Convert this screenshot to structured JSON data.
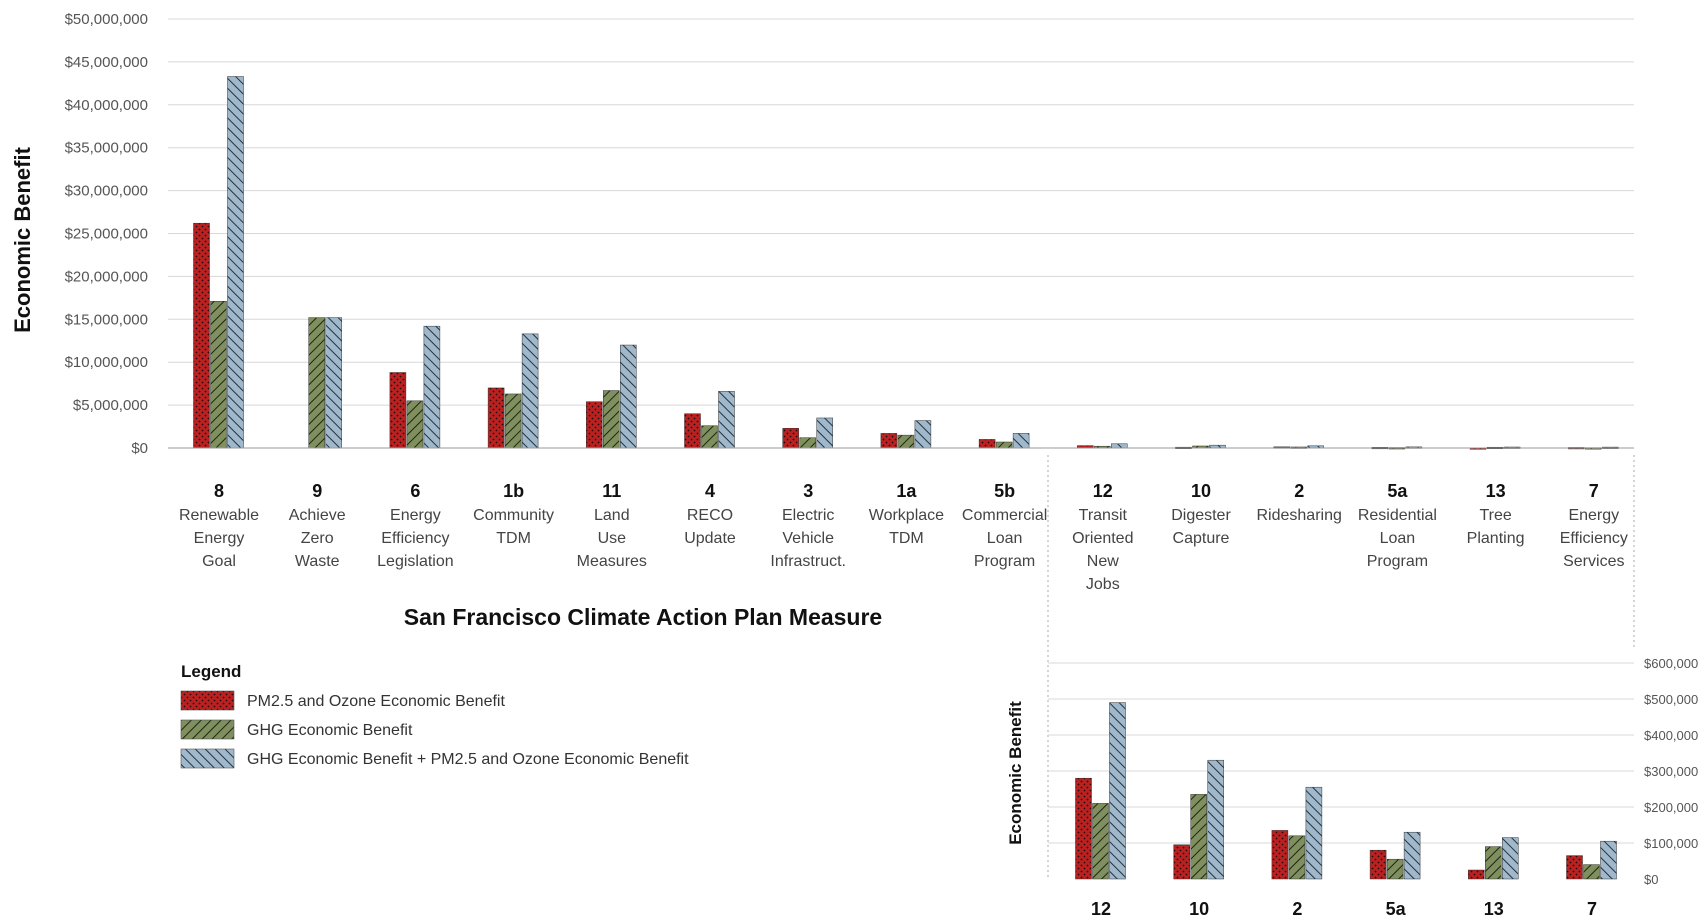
{
  "colors": {
    "pm": "#b82222",
    "ghg": "#7a8a5a",
    "total": "#9ab4c8",
    "grid": "#d8d8d8"
  },
  "legend": {
    "title": "Legend",
    "items": [
      "PM2.5 and Ozone Economic Benefit",
      "GHG Economic Benefit",
      "GHG Economic Benefit + PM2.5 and Ozone Economic Benefit"
    ]
  },
  "chart_data": [
    {
      "type": "bar",
      "ylabel": "Economic Benefit",
      "xlabel": "San Francisco Climate Action Plan Measure",
      "ylim": [
        0,
        50000000
      ],
      "yticks": [
        "$0",
        "$5,000,000",
        "$10,000,000",
        "$15,000,000",
        "$20,000,000",
        "$25,000,000",
        "$30,000,000",
        "$35,000,000",
        "$40,000,000",
        "$45,000,000",
        "$50,000,000"
      ],
      "grid": true,
      "categories": [
        "8",
        "9",
        "6",
        "1b",
        "11",
        "4",
        "3",
        "1a",
        "5b",
        "12",
        "10",
        "2",
        "5a",
        "13",
        "7"
      ],
      "category_names": [
        [
          "Renewable",
          "Energy",
          "Goal"
        ],
        [
          "Achieve",
          "Zero",
          "Waste"
        ],
        [
          "Energy",
          "Efficiency",
          "Legislation"
        ],
        [
          "Community",
          "TDM"
        ],
        [
          "Land",
          "Use",
          "Measures"
        ],
        [
          "RECO",
          "Update"
        ],
        [
          "Electric",
          "Vehicle",
          "Infrastruct."
        ],
        [
          "Workplace",
          "TDM"
        ],
        [
          "Commercial",
          "Loan",
          "Program"
        ],
        [
          "Transit",
          "Oriented",
          "New",
          "Jobs"
        ],
        [
          "Digester",
          "Capture"
        ],
        [
          "Ridesharing"
        ],
        [
          "Residential",
          "Loan",
          "Program"
        ],
        [
          "Tree",
          "Planting"
        ],
        [
          "Energy",
          "Efficiency",
          "Services"
        ]
      ],
      "series": [
        {
          "name": "PM2.5 and Ozone Economic Benefit",
          "values": [
            26200000,
            0,
            8800000,
            7000000,
            5400000,
            4000000,
            2300000,
            1700000,
            1000000,
            280000,
            95000,
            135000,
            80000,
            25000,
            65000
          ]
        },
        {
          "name": "GHG Economic Benefit",
          "values": [
            17100000,
            15200000,
            5500000,
            6300000,
            6700000,
            2600000,
            1200000,
            1500000,
            700000,
            210000,
            235000,
            120000,
            55000,
            90000,
            40000
          ]
        },
        {
          "name": "GHG Economic Benefit + PM2.5 and Ozone Economic Benefit",
          "values": [
            43300000,
            15200000,
            14200000,
            13300000,
            12000000,
            6600000,
            3500000,
            3200000,
            1700000,
            490000,
            330000,
            255000,
            130000,
            115000,
            105000
          ]
        }
      ]
    },
    {
      "type": "bar",
      "ylabel": "Economic Benefit",
      "ylim": [
        0,
        600000
      ],
      "yticks": [
        "$0",
        "$100,000",
        "$200,000",
        "$300,000",
        "$400,000",
        "$500,000",
        "$600,000"
      ],
      "grid": true,
      "categories": [
        "12",
        "10",
        "2",
        "5a",
        "13",
        "7"
      ],
      "series": [
        {
          "name": "PM2.5 and Ozone Economic Benefit",
          "values": [
            280000,
            95000,
            135000,
            80000,
            25000,
            65000
          ]
        },
        {
          "name": "GHG Economic Benefit",
          "values": [
            210000,
            235000,
            120000,
            55000,
            90000,
            40000
          ]
        },
        {
          "name": "GHG Economic Benefit + PM2.5 and Ozone Economic Benefit",
          "values": [
            490000,
            330000,
            255000,
            130000,
            115000,
            105000
          ]
        }
      ]
    }
  ]
}
